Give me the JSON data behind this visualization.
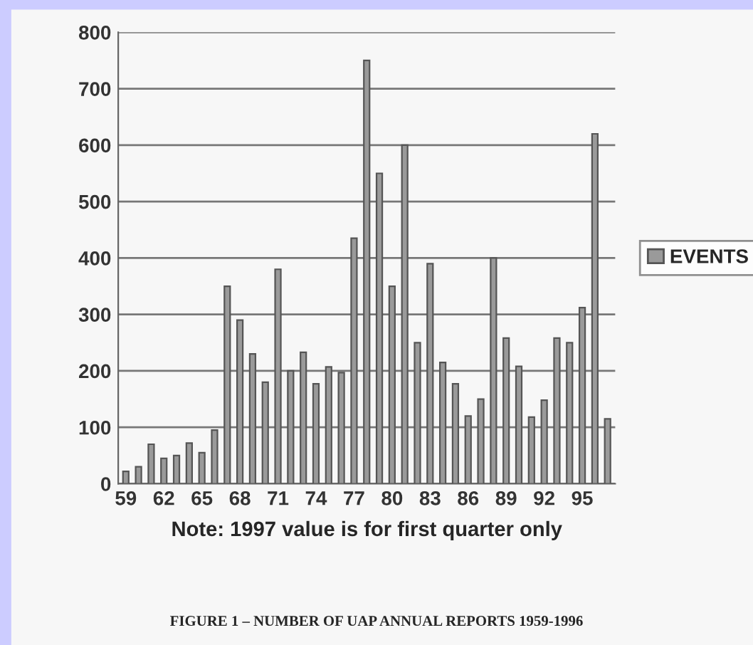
{
  "chart_data": {
    "type": "bar",
    "title": "FIGURE 1 – NUMBER OF UAP ANNUAL REPORTS 1959-1996",
    "xlabel": "Note: 1997 value is for first quarter only",
    "categories": [
      "59",
      null,
      null,
      "62",
      null,
      null,
      "65",
      null,
      null,
      "68",
      null,
      null,
      "71",
      null,
      null,
      "74",
      null,
      null,
      "77",
      null,
      null,
      "80",
      null,
      null,
      "83",
      null,
      null,
      "86",
      null,
      null,
      "89",
      null,
      null,
      "92",
      null,
      null,
      "95",
      null,
      null
    ],
    "series": [
      {
        "name": "EVENTS",
        "color": "#9a9a9a",
        "values": [
          22,
          30,
          70,
          45,
          50,
          72,
          55,
          95,
          350,
          290,
          230,
          180,
          380,
          200,
          233,
          177,
          207,
          197,
          435,
          750,
          550,
          350,
          600,
          250,
          390,
          215,
          177,
          120,
          150,
          400,
          258,
          208,
          118,
          148,
          258,
          250,
          312,
          620,
          115
        ]
      }
    ],
    "ylim": [
      0,
      800
    ],
    "yticks": [
      0,
      100,
      200,
      300,
      400,
      500,
      600,
      700,
      800
    ],
    "grid": "y",
    "legend": "right"
  }
}
